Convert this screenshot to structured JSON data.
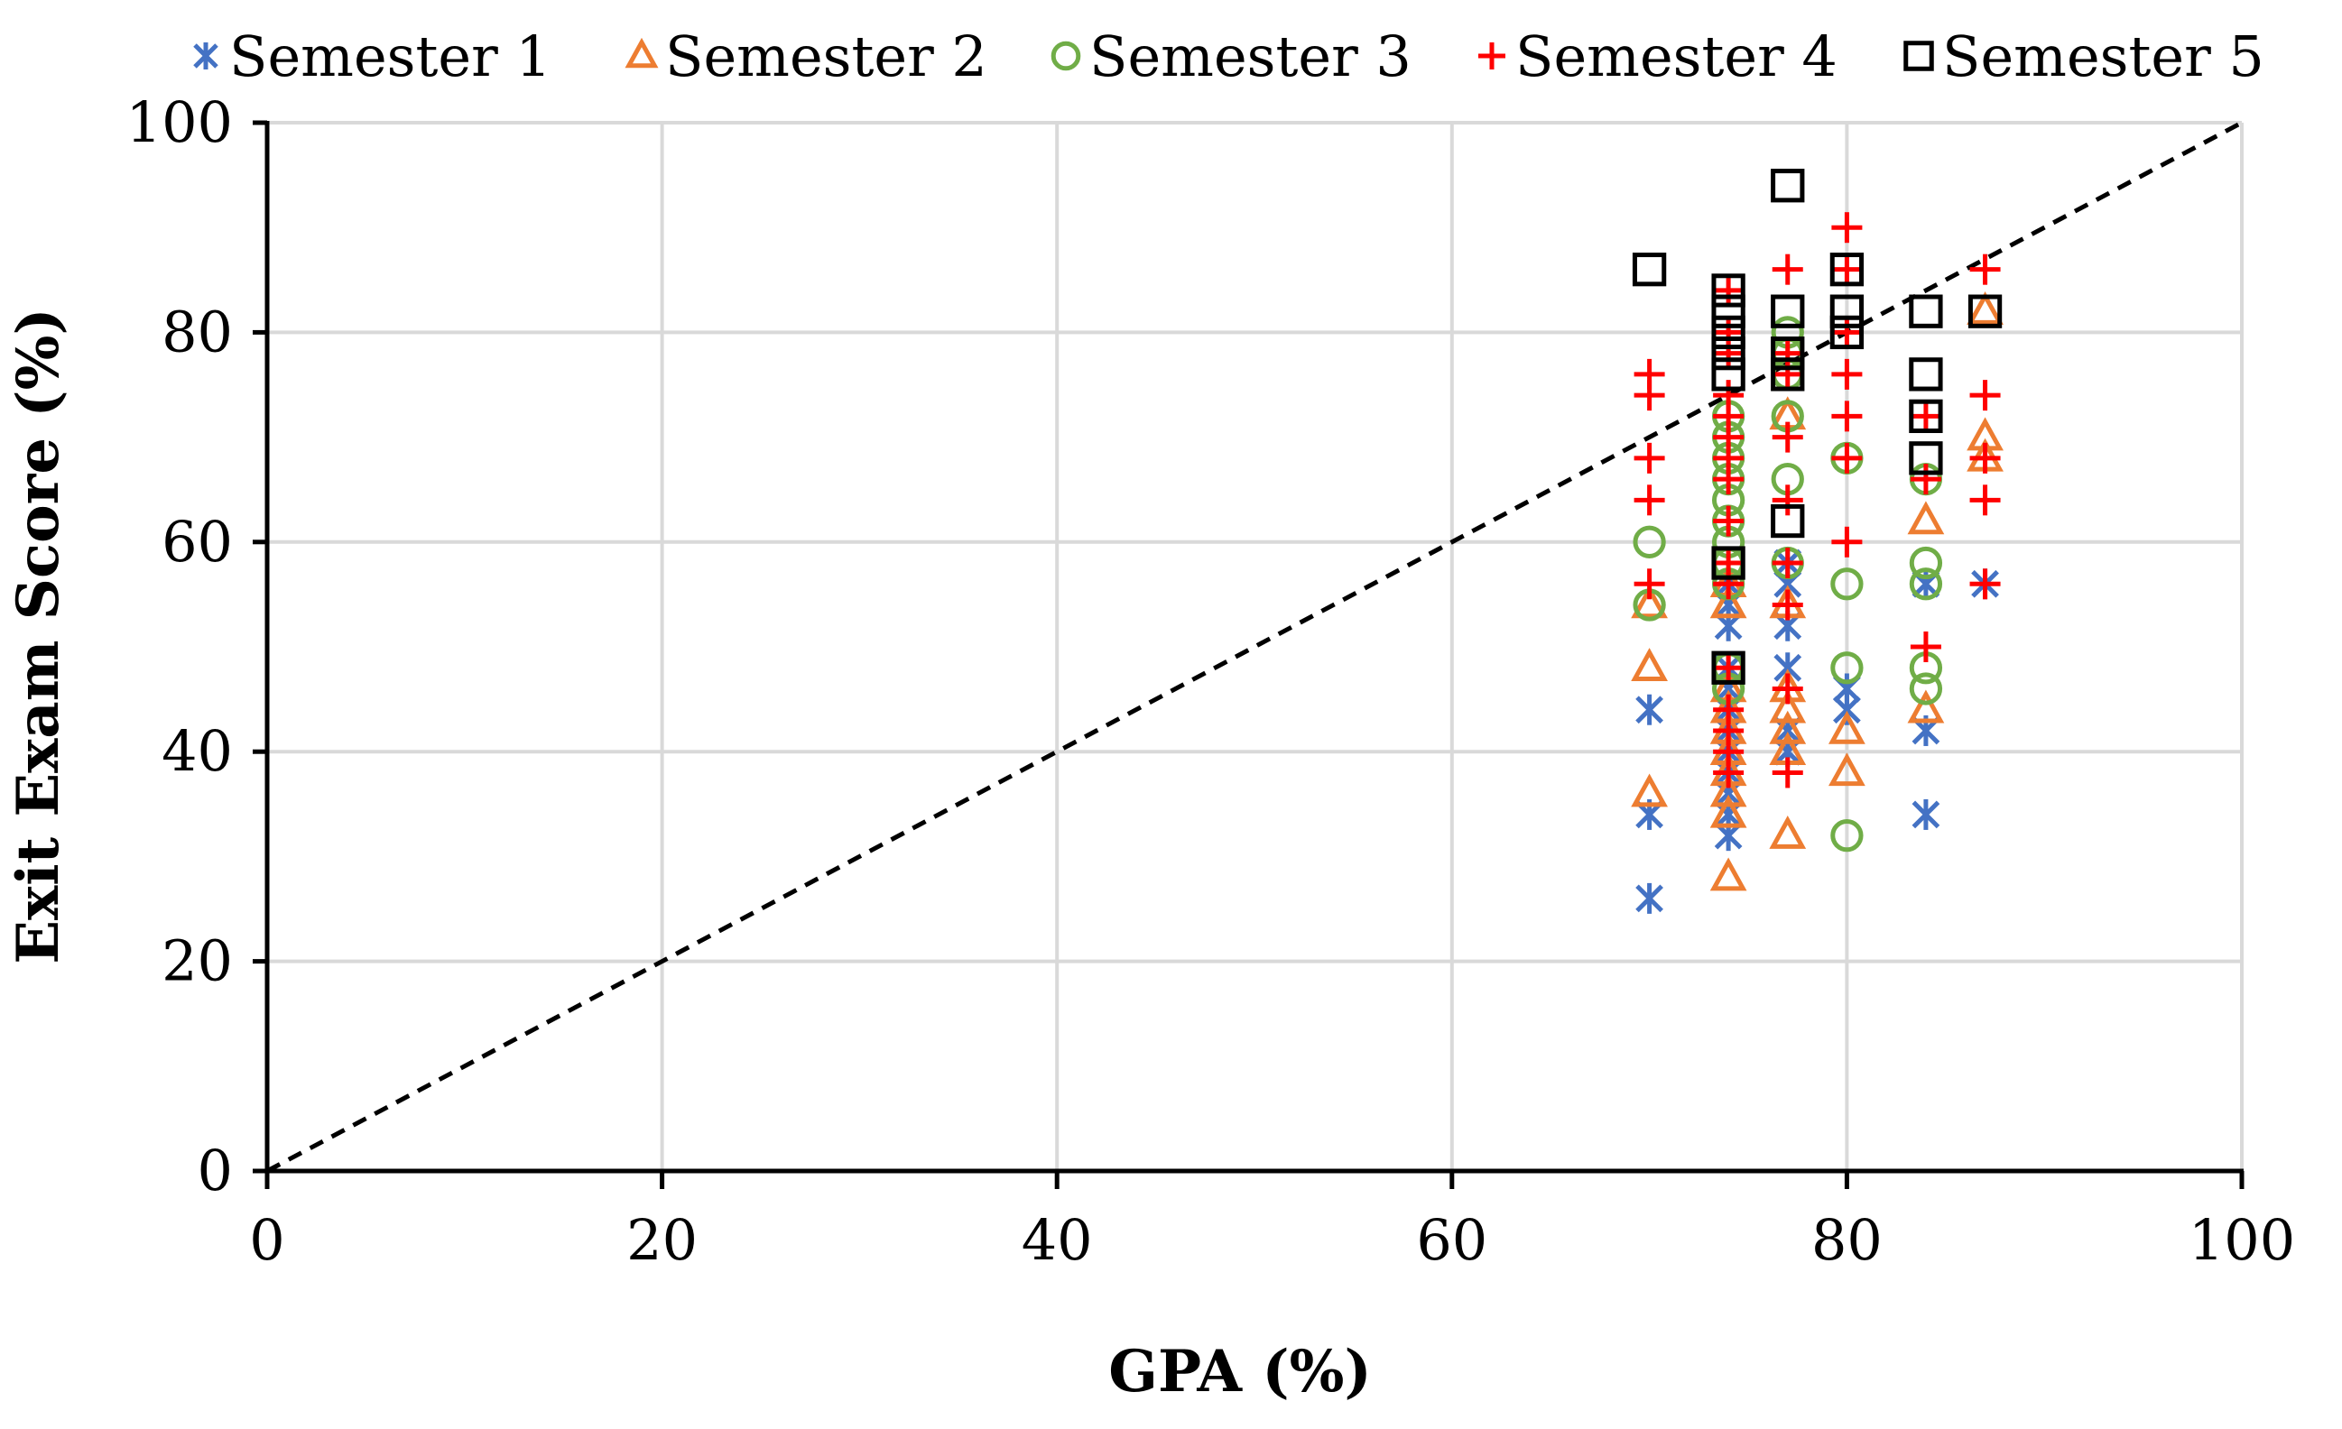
{
  "chart_data": {
    "type": "scatter",
    "title": "",
    "xlabel": "GPA (%)",
    "ylabel": "Exit Exam Score (%)",
    "xlim": [
      0,
      100
    ],
    "ylim": [
      0,
      100
    ],
    "x_ticks": [
      "0",
      "20",
      "40",
      "60",
      "80",
      "100"
    ],
    "y_ticks": [
      "0",
      "20",
      "40",
      "60",
      "80",
      "100"
    ],
    "grid": true,
    "legend_position": "top",
    "reference_line": {
      "name": "y = x",
      "style": "dashed",
      "from": [
        0,
        0
      ],
      "to": [
        100,
        100
      ]
    },
    "series": [
      {
        "name": "Semester 1",
        "marker": "asterisk",
        "color": "#4472C4",
        "points": [
          [
            70,
            26
          ],
          [
            70,
            34
          ],
          [
            70,
            44
          ],
          [
            74,
            32
          ],
          [
            74,
            34
          ],
          [
            74,
            36
          ],
          [
            74,
            38
          ],
          [
            74,
            40
          ],
          [
            74,
            42
          ],
          [
            74,
            44
          ],
          [
            74,
            46
          ],
          [
            74,
            48
          ],
          [
            74,
            52
          ],
          [
            74,
            54
          ],
          [
            74,
            56
          ],
          [
            77,
            40
          ],
          [
            77,
            42
          ],
          [
            77,
            48
          ],
          [
            77,
            52
          ],
          [
            77,
            56
          ],
          [
            77,
            58
          ],
          [
            80,
            44
          ],
          [
            80,
            46
          ],
          [
            84,
            34
          ],
          [
            84,
            42
          ],
          [
            84,
            56
          ],
          [
            87,
            56
          ]
        ]
      },
      {
        "name": "Semester 2",
        "marker": "triangle",
        "color": "#ED7D31",
        "points": [
          [
            70,
            36
          ],
          [
            70,
            48
          ],
          [
            70,
            54
          ],
          [
            74,
            28
          ],
          [
            74,
            34
          ],
          [
            74,
            36
          ],
          [
            74,
            38
          ],
          [
            74,
            40
          ],
          [
            74,
            42
          ],
          [
            74,
            44
          ],
          [
            74,
            46
          ],
          [
            74,
            54
          ],
          [
            74,
            56
          ],
          [
            77,
            32
          ],
          [
            77,
            40
          ],
          [
            77,
            42
          ],
          [
            77,
            44
          ],
          [
            77,
            46
          ],
          [
            77,
            54
          ],
          [
            77,
            72
          ],
          [
            80,
            38
          ],
          [
            80,
            42
          ],
          [
            84,
            44
          ],
          [
            84,
            62
          ],
          [
            87,
            68
          ],
          [
            87,
            70
          ],
          [
            87,
            82
          ]
        ]
      },
      {
        "name": "Semester 3",
        "marker": "circle",
        "color": "#70AD47",
        "points": [
          [
            70,
            54
          ],
          [
            70,
            60
          ],
          [
            74,
            46
          ],
          [
            74,
            48
          ],
          [
            74,
            56
          ],
          [
            74,
            58
          ],
          [
            74,
            60
          ],
          [
            74,
            62
          ],
          [
            74,
            64
          ],
          [
            74,
            66
          ],
          [
            74,
            68
          ],
          [
            74,
            70
          ],
          [
            74,
            72
          ],
          [
            77,
            58
          ],
          [
            77,
            66
          ],
          [
            77,
            72
          ],
          [
            77,
            76
          ],
          [
            77,
            78
          ],
          [
            77,
            80
          ],
          [
            80,
            32
          ],
          [
            80,
            48
          ],
          [
            80,
            56
          ],
          [
            80,
            68
          ],
          [
            84,
            46
          ],
          [
            84,
            48
          ],
          [
            84,
            56
          ],
          [
            84,
            58
          ],
          [
            84,
            66
          ]
        ]
      },
      {
        "name": "Semester 4",
        "marker": "plus",
        "color": "#FF0000",
        "points": [
          [
            70,
            56
          ],
          [
            70,
            64
          ],
          [
            70,
            68
          ],
          [
            70,
            74
          ],
          [
            70,
            76
          ],
          [
            74,
            38
          ],
          [
            74,
            40
          ],
          [
            74,
            42
          ],
          [
            74,
            44
          ],
          [
            74,
            48
          ],
          [
            74,
            56
          ],
          [
            74,
            58
          ],
          [
            74,
            62
          ],
          [
            74,
            66
          ],
          [
            74,
            68
          ],
          [
            74,
            70
          ],
          [
            74,
            72
          ],
          [
            74,
            74
          ],
          [
            74,
            78
          ],
          [
            74,
            80
          ],
          [
            74,
            84
          ],
          [
            77,
            38
          ],
          [
            77,
            46
          ],
          [
            77,
            54
          ],
          [
            77,
            58
          ],
          [
            77,
            64
          ],
          [
            77,
            70
          ],
          [
            77,
            76
          ],
          [
            77,
            78
          ],
          [
            77,
            86
          ],
          [
            80,
            60
          ],
          [
            80,
            68
          ],
          [
            80,
            72
          ],
          [
            80,
            76
          ],
          [
            80,
            80
          ],
          [
            80,
            86
          ],
          [
            80,
            90
          ],
          [
            84,
            50
          ],
          [
            84,
            66
          ],
          [
            84,
            72
          ],
          [
            87,
            56
          ],
          [
            87,
            64
          ],
          [
            87,
            68
          ],
          [
            87,
            74
          ],
          [
            87,
            86
          ]
        ]
      },
      {
        "name": "Semester 5",
        "marker": "square",
        "color": "#000000",
        "points": [
          [
            70,
            86
          ],
          [
            74,
            48
          ],
          [
            74,
            58
          ],
          [
            74,
            76
          ],
          [
            74,
            78
          ],
          [
            74,
            80
          ],
          [
            74,
            82
          ],
          [
            74,
            84
          ],
          [
            77,
            62
          ],
          [
            77,
            76
          ],
          [
            77,
            78
          ],
          [
            77,
            82
          ],
          [
            77,
            94
          ],
          [
            80,
            80
          ],
          [
            80,
            82
          ],
          [
            80,
            86
          ],
          [
            84,
            68
          ],
          [
            84,
            72
          ],
          [
            84,
            76
          ],
          [
            84,
            82
          ],
          [
            87,
            82
          ]
        ]
      }
    ]
  }
}
